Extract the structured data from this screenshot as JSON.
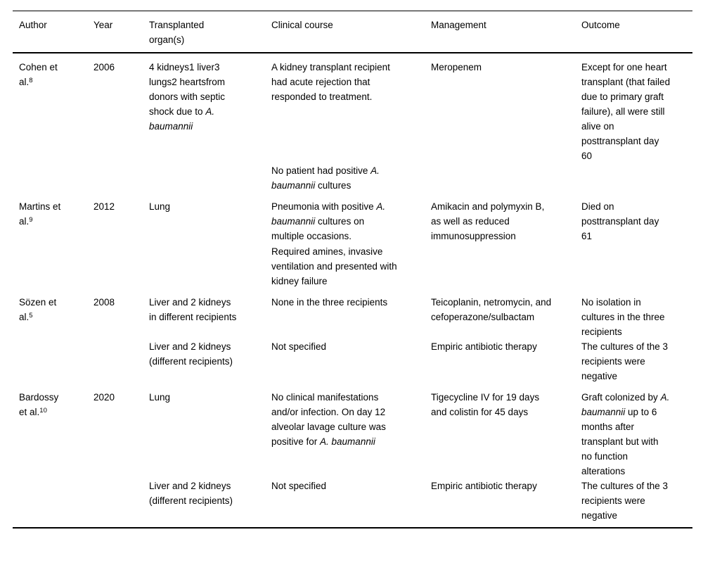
{
  "table": {
    "columns": [
      {
        "key": "author",
        "label": "Author"
      },
      {
        "key": "year",
        "label": "Year"
      },
      {
        "key": "organs",
        "label": "Transplanted organ(s)"
      },
      {
        "key": "clinical",
        "label": "Clinical course"
      },
      {
        "key": "management",
        "label": "Management"
      },
      {
        "key": "outcome",
        "label": "Outcome"
      }
    ],
    "entries": [
      {
        "author": [
          {
            "t": "Cohen et al."
          },
          {
            "t": "8",
            "sup": true
          }
        ],
        "year": "2006",
        "sub_rows": [
          {
            "organs": [
              [
                {
                  "t": "4 kidneys1 liver3 lungs2 heartsfrom donors with septic shock due to "
                },
                {
                  "t": "A. baumannii",
                  "i": true
                }
              ]
            ],
            "clinical": [
              [
                {
                  "t": "A kidney transplant recipient had acute rejection that responded to treatment."
                }
              ]
            ],
            "management": [
              [
                {
                  "t": "Meropenem"
                }
              ]
            ],
            "outcome": [
              [
                {
                  "t": "Except for one heart transplant (that failed due to primary graft failure), all were still alive on posttransplant day 60"
                }
              ]
            ]
          },
          {
            "organs": [],
            "clinical": [
              [
                {
                  "t": "No patient had positive "
                },
                {
                  "t": "A. baumannii",
                  "i": true
                },
                {
                  "t": " cultures"
                }
              ]
            ],
            "management": [],
            "outcome": []
          }
        ]
      },
      {
        "author": [
          {
            "t": "Martins et al."
          },
          {
            "t": "9",
            "sup": true
          }
        ],
        "year": "2012",
        "sub_rows": [
          {
            "organs": [
              [
                {
                  "t": "Lung"
                }
              ]
            ],
            "clinical": [
              [
                {
                  "t": "Pneumonia with positive "
                },
                {
                  "t": "A. baumannii",
                  "i": true
                },
                {
                  "t": " cultures on multiple occasions."
                }
              ],
              [
                {
                  "t": "Required amines, invasive ventilation and presented with kidney failure"
                }
              ]
            ],
            "management": [
              [
                {
                  "t": "Amikacin and polymyxin B, as well as reduced immunosuppression"
                }
              ]
            ],
            "outcome": [
              [
                {
                  "t": "Died on posttransplant day 61"
                }
              ]
            ]
          }
        ]
      },
      {
        "author": [
          {
            "t": "Sözen et al."
          },
          {
            "t": "5",
            "sup": true
          }
        ],
        "year": "2008",
        "sub_rows": [
          {
            "organs": [
              [
                {
                  "t": "Liver and 2 kidneys in different recipients"
                }
              ]
            ],
            "clinical": [
              [
                {
                  "t": "None in the three recipients"
                }
              ]
            ],
            "management": [
              [
                {
                  "t": "Teicoplanin, netromycin, and cefoperazone/sulbactam"
                }
              ]
            ],
            "outcome": [
              [
                {
                  "t": "No isolation in cultures in the three recipients"
                }
              ]
            ]
          },
          {
            "organs": [
              [
                {
                  "t": "Liver and 2 kidneys (different recipients)"
                }
              ]
            ],
            "clinical": [
              [
                {
                  "t": "Not specified"
                }
              ]
            ],
            "management": [
              [
                {
                  "t": "Empiric antibiotic therapy"
                }
              ]
            ],
            "outcome": [
              [
                {
                  "t": "The cultures of the 3 recipients were negative"
                }
              ]
            ]
          }
        ]
      },
      {
        "author": [
          {
            "t": "Bardossy et al."
          },
          {
            "t": "10",
            "sup": true
          }
        ],
        "year": "2020",
        "sub_rows": [
          {
            "organs": [
              [
                {
                  "t": "Lung"
                }
              ]
            ],
            "clinical": [
              [
                {
                  "t": "No clinical manifestations and/or infection. On day 12 alveolar lavage culture was positive for "
                },
                {
                  "t": "A. baumannii",
                  "i": true
                }
              ]
            ],
            "management": [
              [
                {
                  "t": "Tigecycline IV for 19 days and colistin for 45 days"
                }
              ]
            ],
            "outcome": [
              [
                {
                  "t": "Graft colonized by "
                },
                {
                  "t": "A. baumannii",
                  "i": true
                },
                {
                  "t": " up to 6 months after transplant but with no function alterations"
                }
              ]
            ]
          },
          {
            "organs": [
              [
                {
                  "t": "Liver and 2 kidneys (different recipients)"
                }
              ]
            ],
            "clinical": [
              [
                {
                  "t": "Not specified"
                }
              ]
            ],
            "management": [
              [
                {
                  "t": "Empiric antibiotic therapy"
                }
              ]
            ],
            "outcome": [
              [
                {
                  "t": "The cultures of the 3 recipients were negative"
                }
              ]
            ]
          }
        ]
      }
    ]
  }
}
